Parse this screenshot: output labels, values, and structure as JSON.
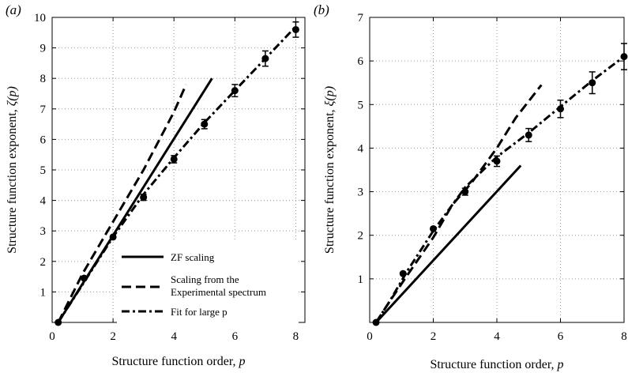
{
  "chart_data": [
    {
      "type": "line",
      "panel_label": "(a)",
      "xlabel": "Structure function order, p",
      "ylabel": "Structure function exponent, ζ(p)",
      "xlim": [
        0,
        8.3
      ],
      "ylim": [
        0,
        10
      ],
      "xticks": [
        0,
        2,
        4,
        6,
        8
      ],
      "yticks": [
        1,
        2,
        3,
        4,
        5,
        6,
        7,
        8,
        9,
        10
      ],
      "grid": true,
      "legend": {
        "placement": "bottom-center"
      },
      "series": [
        {
          "name": "ZF scaling",
          "style": "solid",
          "points": [
            [
              0.2,
              0
            ],
            [
              5.25,
              8.0
            ]
          ]
        },
        {
          "name": "Scaling from the Experimental spectrum",
          "style": "dashed",
          "points": [
            [
              0.2,
              0
            ],
            [
              1.0,
              1.6
            ],
            [
              2.0,
              3.3
            ],
            [
              3.0,
              5.0
            ],
            [
              4.0,
              6.9
            ],
            [
              4.4,
              7.8
            ]
          ]
        },
        {
          "name": "Fit for large p",
          "style": "dash-dot",
          "points": [
            [
              0.2,
              0
            ],
            [
              1.1,
              1.4
            ],
            [
              2.0,
              2.8
            ],
            [
              3.0,
              4.2
            ],
            [
              4.0,
              5.4
            ],
            [
              5.0,
              6.55
            ],
            [
              6.0,
              7.6
            ],
            [
              7.0,
              8.65
            ],
            [
              8.0,
              9.7
            ]
          ]
        }
      ],
      "markers": [
        {
          "x": 0.2,
          "y": 0,
          "err": 0
        },
        {
          "x": 1.05,
          "y": 1.45,
          "err": 0
        },
        {
          "x": 2.0,
          "y": 2.8,
          "err": 0
        },
        {
          "x": 3.0,
          "y": 4.1,
          "err": 0.1
        },
        {
          "x": 4.0,
          "y": 5.35,
          "err": 0.12
        },
        {
          "x": 5.0,
          "y": 6.5,
          "err": 0.15
        },
        {
          "x": 6.0,
          "y": 7.6,
          "err": 0.2
        },
        {
          "x": 7.0,
          "y": 8.65,
          "err": 0.25
        },
        {
          "x": 8.0,
          "y": 9.6,
          "err": 0.25
        }
      ]
    },
    {
      "type": "line",
      "panel_label": "(b)",
      "xlabel": "Structure function order, p",
      "ylabel": "Structure function exponent, ξ(p)",
      "xlim": [
        0,
        8
      ],
      "ylim": [
        0,
        7
      ],
      "xticks": [
        0,
        2,
        4,
        6,
        8
      ],
      "yticks": [
        1,
        2,
        3,
        4,
        5,
        6,
        7
      ],
      "grid": true,
      "series": [
        {
          "style": "solid",
          "points": [
            [
              0.2,
              0
            ],
            [
              4.75,
              3.6
            ]
          ]
        },
        {
          "style": "dashed",
          "points": [
            [
              0.2,
              0
            ],
            [
              0.6,
              0.45
            ],
            [
              1.2,
              1.1
            ],
            [
              2.0,
              1.95
            ],
            [
              2.6,
              2.7
            ],
            [
              3.2,
              3.2
            ],
            [
              4.0,
              4.0
            ],
            [
              4.6,
              4.7
            ],
            [
              5.4,
              5.45
            ]
          ]
        },
        {
          "style": "dash-dot",
          "points": [
            [
              0.2,
              0
            ],
            [
              0.6,
              0.45
            ],
            [
              1.2,
              1.2
            ],
            [
              2.0,
              2.1
            ],
            [
              3.0,
              3.1
            ],
            [
              4.0,
              3.8
            ],
            [
              5.0,
              4.35
            ],
            [
              6.0,
              4.95
            ],
            [
              7.0,
              5.55
            ],
            [
              8.0,
              6.1
            ]
          ]
        }
      ],
      "markers": [
        {
          "x": 0.2,
          "y": 0,
          "err": 0
        },
        {
          "x": 1.05,
          "y": 1.12,
          "err": 0
        },
        {
          "x": 2.0,
          "y": 2.15,
          "err": 0
        },
        {
          "x": 3.0,
          "y": 3.0,
          "err": 0.08
        },
        {
          "x": 4.0,
          "y": 3.7,
          "err": 0.12
        },
        {
          "x": 5.0,
          "y": 4.3,
          "err": 0.15
        },
        {
          "x": 6.0,
          "y": 4.9,
          "err": 0.2
        },
        {
          "x": 7.0,
          "y": 5.5,
          "err": 0.25
        },
        {
          "x": 8.0,
          "y": 6.1,
          "err": 0.3
        }
      ]
    }
  ]
}
